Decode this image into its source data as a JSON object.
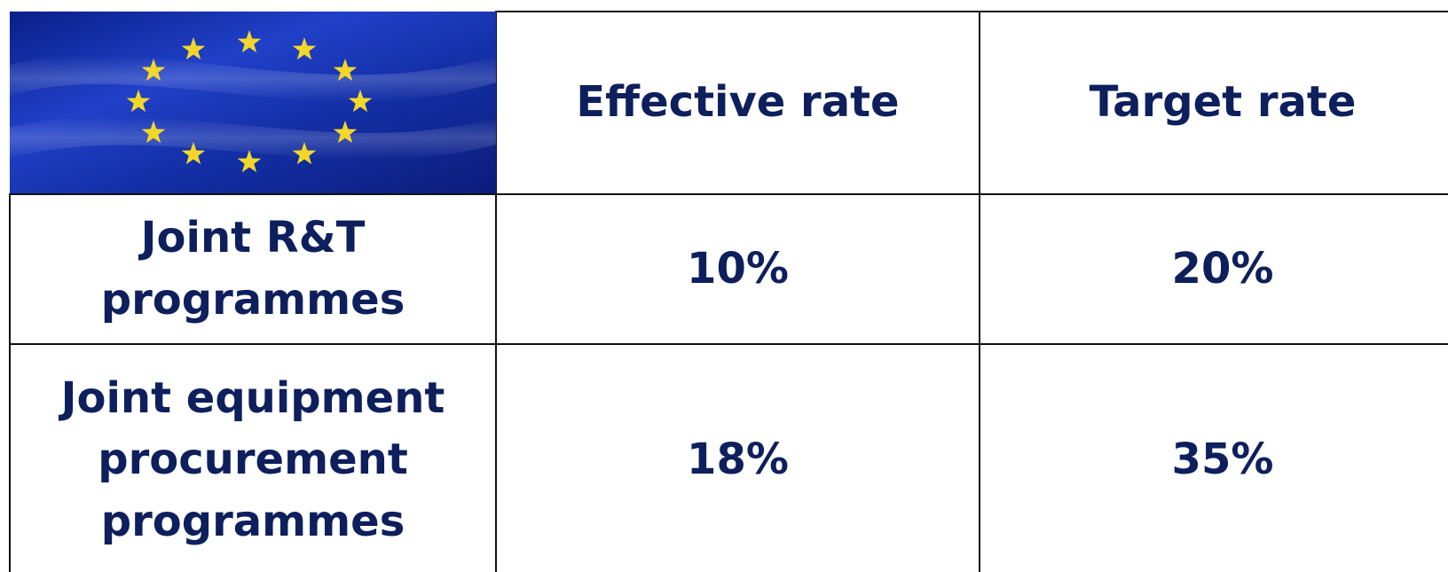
{
  "table": {
    "header": [
      "Effective rate",
      "Target rate"
    ],
    "rows": [
      [
        "Joint R&T programmes",
        "10%",
        "20%"
      ],
      [
        "Joint equipment procurement programmes",
        "18%",
        "35%"
      ]
    ]
  }
}
